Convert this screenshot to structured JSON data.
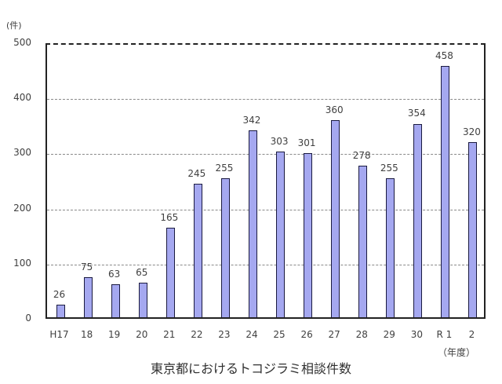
{
  "chart_data": {
    "type": "bar",
    "title": "東京都におけるトコジラミ相談件数",
    "xlabel": "（年度）",
    "ylabel": "(件)",
    "ylim": [
      0,
      500
    ],
    "yticks": [
      0,
      100,
      200,
      300,
      400,
      500
    ],
    "grid": true,
    "legend": null,
    "categories": [
      "H17",
      "18",
      "19",
      "20",
      "21",
      "22",
      "23",
      "24",
      "25",
      "26",
      "27",
      "28",
      "29",
      "30",
      "R 1",
      "2"
    ],
    "values": [
      26,
      75,
      63,
      65,
      165,
      245,
      255,
      342,
      303,
      301,
      360,
      278,
      255,
      354,
      458,
      320
    ],
    "bar_color": "#a5a8f0",
    "bar_edge_color": "#1a1a40"
  },
  "labels": {
    "unit": "(件)",
    "x_unit": "（年度）",
    "title": "東京都におけるトコジラミ相談件数",
    "yticks": [
      "0",
      "100",
      "200",
      "300",
      "400",
      "500"
    ]
  }
}
